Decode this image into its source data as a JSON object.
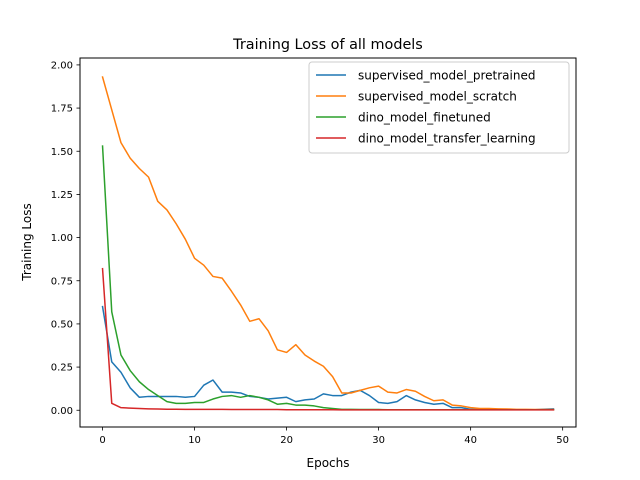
{
  "chart_data": {
    "type": "line",
    "title": "Training Loss of all models",
    "xlabel": "Epochs",
    "ylabel": "Training Loss",
    "xlim": [
      -2.45,
      51.45
    ],
    "ylim": [
      -0.097,
      2.04
    ],
    "x_ticks": [
      0,
      10,
      20,
      30,
      40,
      50
    ],
    "x_tick_labels": [
      "0",
      "10",
      "20",
      "30",
      "40",
      "50"
    ],
    "y_ticks": [
      0.0,
      0.25,
      0.5,
      0.75,
      1.0,
      1.25,
      1.5,
      1.75,
      2.0
    ],
    "y_tick_labels": [
      "0.00",
      "0.25",
      "0.50",
      "0.75",
      "1.00",
      "1.25",
      "1.50",
      "1.75",
      "2.00"
    ],
    "grid": false,
    "legend_position": "top-right",
    "x": [
      0,
      1,
      2,
      3,
      4,
      5,
      6,
      7,
      8,
      9,
      10,
      11,
      12,
      13,
      14,
      15,
      16,
      17,
      18,
      19,
      20,
      21,
      22,
      23,
      24,
      25,
      26,
      27,
      28,
      29,
      30,
      31,
      32,
      33,
      34,
      35,
      36,
      37,
      38,
      39,
      40,
      41,
      42,
      43,
      44,
      45,
      46,
      47,
      48,
      49
    ],
    "series": [
      {
        "name": "supervised_model_pretrained",
        "color": "#1f77b4",
        "values": [
          0.6,
          0.28,
          0.22,
          0.13,
          0.075,
          0.08,
          0.08,
          0.08,
          0.08,
          0.075,
          0.08,
          0.145,
          0.175,
          0.105,
          0.105,
          0.1,
          0.08,
          0.075,
          0.065,
          0.07,
          0.075,
          0.05,
          0.06,
          0.065,
          0.095,
          0.085,
          0.085,
          0.105,
          0.115,
          0.085,
          0.045,
          0.04,
          0.05,
          0.085,
          0.06,
          0.045,
          0.035,
          0.04,
          0.015,
          0.015,
          0.005,
          0.005,
          0.005,
          0.004,
          0.004,
          0.003,
          0.003,
          0.003,
          0.006,
          0.008
        ]
      },
      {
        "name": "supervised_model_scratch",
        "color": "#ff7f0e",
        "values": [
          1.93,
          1.74,
          1.55,
          1.46,
          1.4,
          1.35,
          1.21,
          1.16,
          1.08,
          0.99,
          0.88,
          0.84,
          0.775,
          0.765,
          0.69,
          0.61,
          0.515,
          0.53,
          0.46,
          0.35,
          0.335,
          0.38,
          0.32,
          0.285,
          0.255,
          0.195,
          0.1,
          0.1,
          0.115,
          0.13,
          0.14,
          0.105,
          0.1,
          0.12,
          0.11,
          0.08,
          0.055,
          0.06,
          0.03,
          0.025,
          0.015,
          0.01,
          0.01,
          0.008,
          0.007,
          0.005,
          0.005,
          0.004,
          0.004,
          0.004
        ]
      },
      {
        "name": "dino_model_finetuned",
        "color": "#2ca02c",
        "values": [
          1.53,
          0.57,
          0.32,
          0.23,
          0.165,
          0.12,
          0.085,
          0.05,
          0.04,
          0.04,
          0.045,
          0.045,
          0.065,
          0.08,
          0.085,
          0.075,
          0.085,
          0.075,
          0.06,
          0.035,
          0.04,
          0.03,
          0.03,
          0.025,
          0.015,
          0.01,
          0.005,
          0.005,
          0.004,
          0.004,
          0.004,
          0.003,
          0.003,
          0.003,
          0.003,
          0.003,
          0.003,
          0.003,
          0.003,
          0.003,
          0.003,
          0.003,
          0.003,
          0.003,
          0.003,
          0.003,
          0.003,
          0.003,
          0.003,
          0.003
        ]
      },
      {
        "name": "dino_model_transfer_learning",
        "color": "#d62728",
        "values": [
          0.82,
          0.04,
          0.015,
          0.012,
          0.01,
          0.008,
          0.007,
          0.006,
          0.006,
          0.005,
          0.005,
          0.005,
          0.005,
          0.005,
          0.004,
          0.004,
          0.004,
          0.004,
          0.004,
          0.004,
          0.003,
          0.003,
          0.003,
          0.003,
          0.003,
          0.003,
          0.002,
          0.002,
          0.002,
          0.002,
          0.002,
          0.002,
          0.002,
          0.002,
          0.002,
          0.002,
          0.002,
          0.002,
          0.002,
          0.002,
          0.002,
          0.002,
          0.002,
          0.002,
          0.002,
          0.002,
          0.002,
          0.002,
          0.002,
          0.002
        ]
      }
    ]
  }
}
